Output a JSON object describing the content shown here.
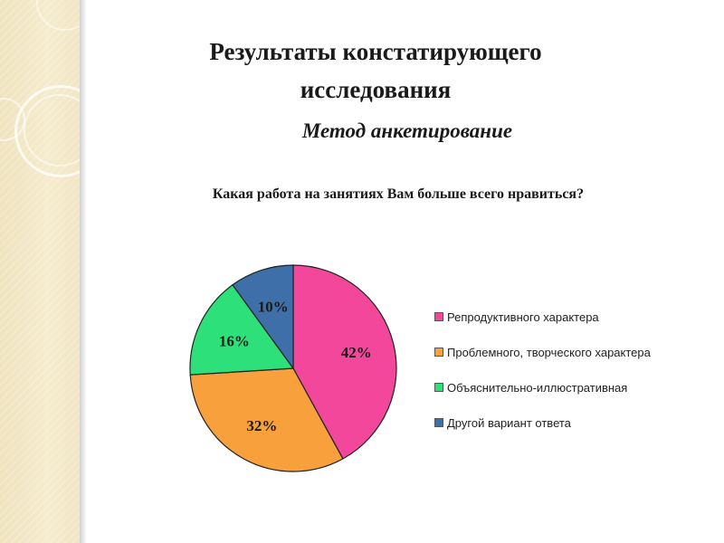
{
  "slide": {
    "title_line1": "Результаты констатирующего",
    "title_line2": "исследования",
    "subtitle": "Метод анкетирование",
    "question": "Какая работа на занятиях Вам больше всего нравиться?"
  },
  "chart_data": {
    "type": "pie",
    "title": "",
    "categories": [
      "Репродуктивного характера",
      "Проблемного, творческого характера",
      "Объяснительно-иллюстративная",
      "Другой вариант ответа"
    ],
    "values": [
      42,
      32,
      16,
      10
    ],
    "labels": [
      "42%",
      "32%",
      "16%",
      "10%"
    ],
    "colors": [
      "#f2479b",
      "#f7a03c",
      "#2ee07a",
      "#3f6fa8"
    ],
    "legend_position": "right"
  }
}
